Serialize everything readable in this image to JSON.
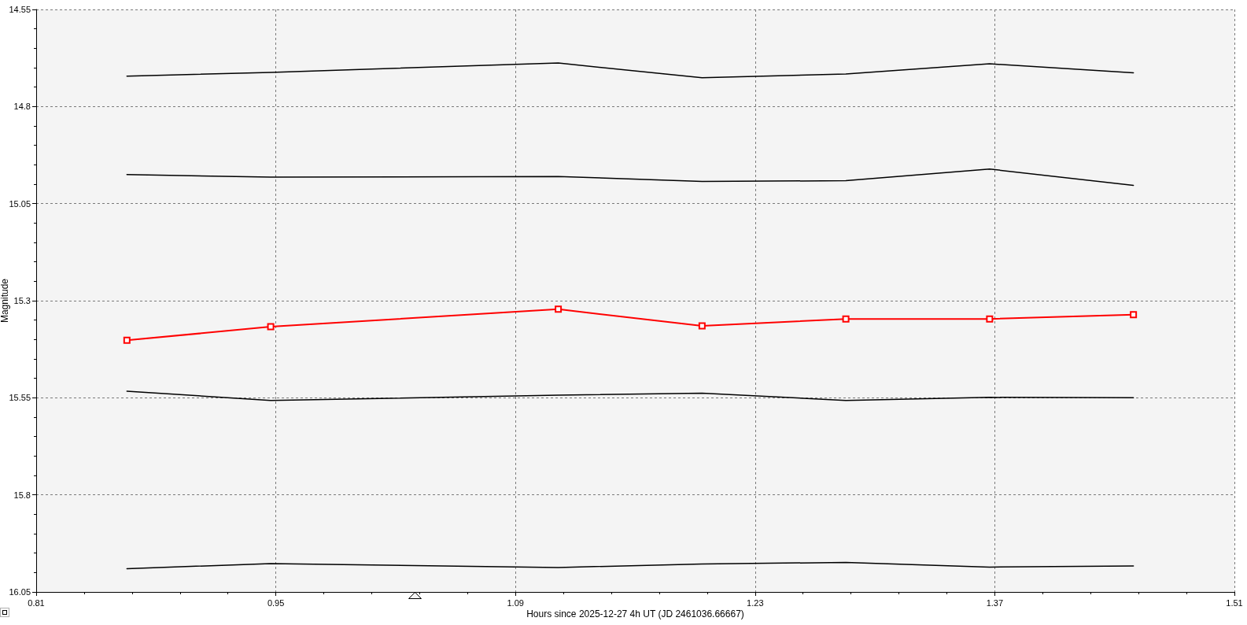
{
  "chart_data": {
    "type": "line",
    "xlabel": "Hours since 2025-12-27 4h UT (JD 2461036.66667)",
    "ylabel": "Magnitude",
    "x": [
      0.863,
      0.947,
      1.115,
      1.199,
      1.283,
      1.367,
      1.451
    ],
    "series": [
      {
        "color": "#000000",
        "marker": "none",
        "values": [
          14.722,
          14.712,
          14.688,
          14.726,
          14.716,
          14.69,
          14.713
        ]
      },
      {
        "color": "#000000",
        "marker": "none",
        "values": [
          14.975,
          14.982,
          14.98,
          14.993,
          14.991,
          14.961,
          15.003
        ]
      },
      {
        "color": "#ff0000",
        "marker": "square",
        "values": [
          15.402,
          15.367,
          15.322,
          15.365,
          15.347,
          15.347,
          15.336
        ]
      },
      {
        "color": "#000000",
        "marker": "none",
        "values": [
          15.533,
          15.557,
          15.543,
          15.538,
          15.557,
          15.549,
          15.55
        ]
      },
      {
        "color": "#000000",
        "marker": "none",
        "values": [
          15.99,
          15.977,
          15.987,
          15.978,
          15.974,
          15.986,
          15.983
        ]
      }
    ],
    "xlim": [
      0.81,
      1.51
    ],
    "ylim": [
      16.05,
      14.55
    ],
    "xticks": [
      0.81,
      0.95,
      1.09,
      1.23,
      1.37,
      1.51
    ],
    "yticks": [
      14.55,
      14.8,
      15.05,
      15.3,
      15.55,
      15.8,
      16.05
    ],
    "grid": true,
    "line_style": "solid"
  }
}
